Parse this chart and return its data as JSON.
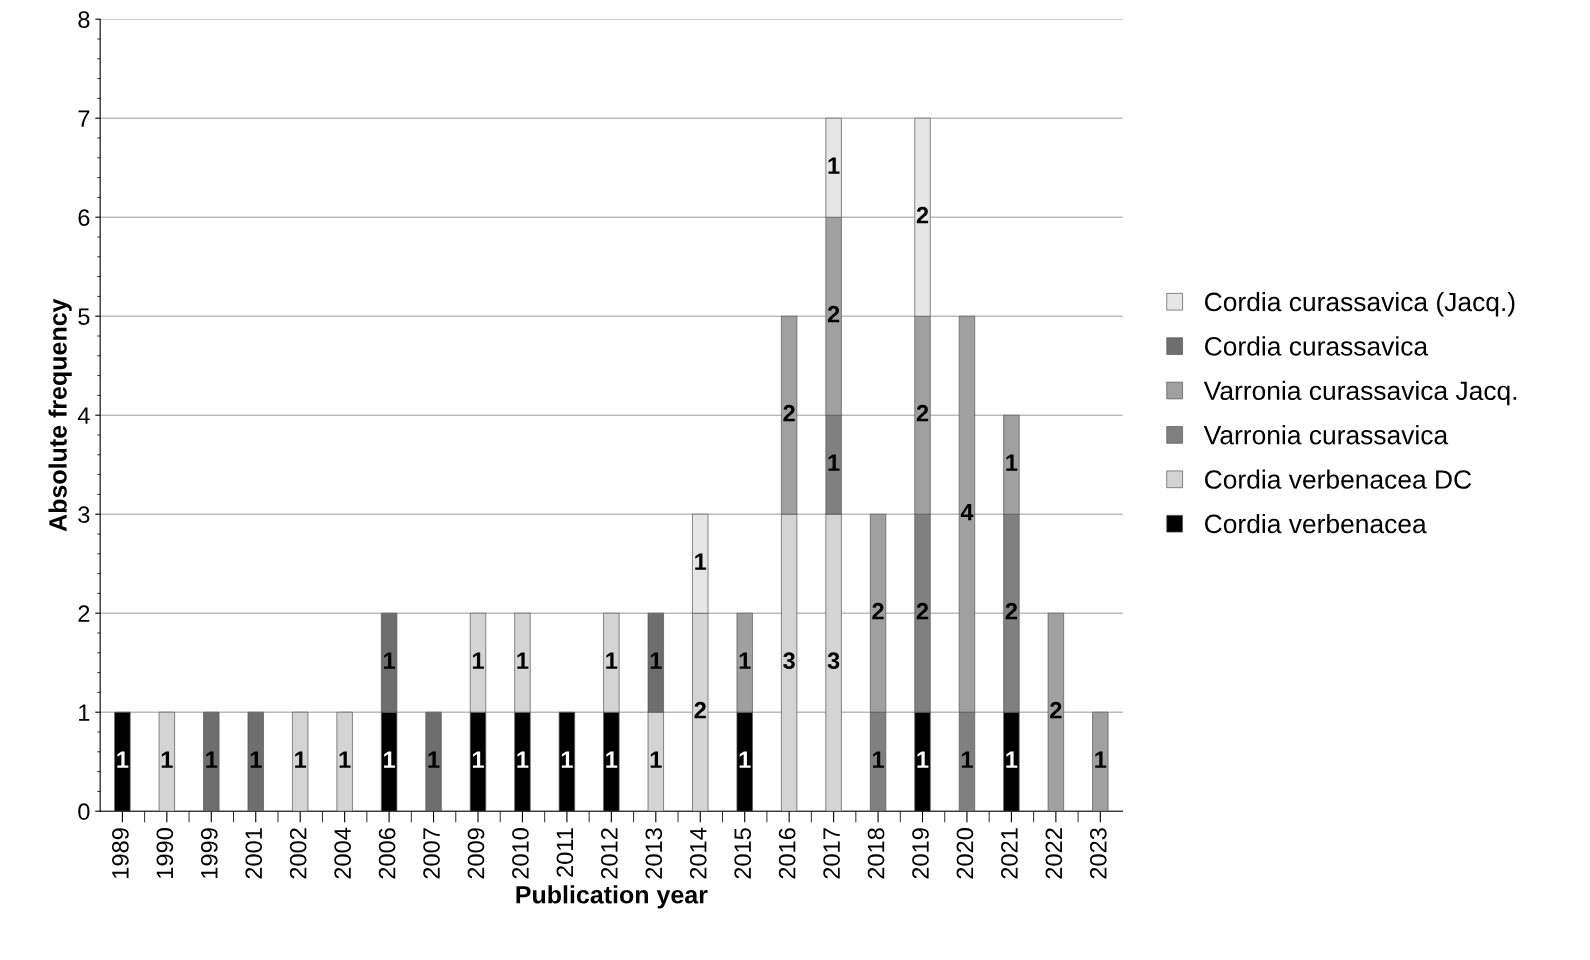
{
  "chart_data": {
    "type": "bar",
    "stacked": true,
    "xlabel": "Publication year",
    "ylabel": "Absolute frequency",
    "categories": [
      "1989",
      "1990",
      "1999",
      "2001",
      "2002",
      "2004",
      "2006",
      "2007",
      "2009",
      "2010",
      "2011",
      "2012",
      "2013",
      "2014",
      "2015",
      "2016",
      "2017",
      "2018",
      "2019",
      "2020",
      "2021",
      "2022",
      "2023"
    ],
    "series": [
      {
        "name": "Cordia verbenacea",
        "color": "#000000",
        "values": [
          1,
          null,
          null,
          null,
          null,
          null,
          1,
          null,
          1,
          1,
          1,
          1,
          null,
          null,
          1,
          null,
          null,
          null,
          1,
          null,
          1,
          null,
          null
        ]
      },
      {
        "name": "Cordia verbenacea DC",
        "color": "#d4d4d4",
        "values": [
          null,
          1,
          null,
          null,
          1,
          1,
          null,
          null,
          1,
          1,
          null,
          1,
          1,
          2,
          null,
          3,
          3,
          null,
          null,
          null,
          null,
          null,
          null
        ]
      },
      {
        "name": "Varronia curassavica",
        "color": "#808080",
        "values": [
          null,
          null,
          null,
          null,
          null,
          null,
          null,
          null,
          null,
          null,
          null,
          null,
          null,
          null,
          null,
          null,
          1,
          1,
          2,
          1,
          2,
          null,
          null
        ]
      },
      {
        "name": "Varronia curassavica Jacq.",
        "color": "#a0a0a0",
        "values": [
          null,
          null,
          null,
          null,
          null,
          null,
          null,
          null,
          null,
          null,
          null,
          null,
          null,
          null,
          1,
          2,
          2,
          2,
          2,
          4,
          1,
          2,
          1
        ]
      },
      {
        "name": "Cordia curassavica",
        "color": "#6e6e6e",
        "values": [
          null,
          null,
          1,
          1,
          null,
          null,
          1,
          1,
          null,
          null,
          null,
          null,
          1,
          null,
          null,
          null,
          null,
          null,
          null,
          null,
          null,
          null,
          null
        ]
      },
      {
        "name": "Cordia curassavica (Jacq.)",
        "color": "#e6e6e6",
        "values": [
          null,
          null,
          null,
          null,
          null,
          null,
          null,
          null,
          null,
          null,
          null,
          null,
          null,
          1,
          null,
          null,
          1,
          null,
          2,
          null,
          null,
          null,
          null
        ]
      }
    ],
    "ylim": [
      0,
      8
    ],
    "yticks": [
      0,
      1,
      2,
      3,
      4,
      5,
      6,
      7,
      8
    ],
    "grid": "y",
    "data_labels": true,
    "legend": "right"
  }
}
